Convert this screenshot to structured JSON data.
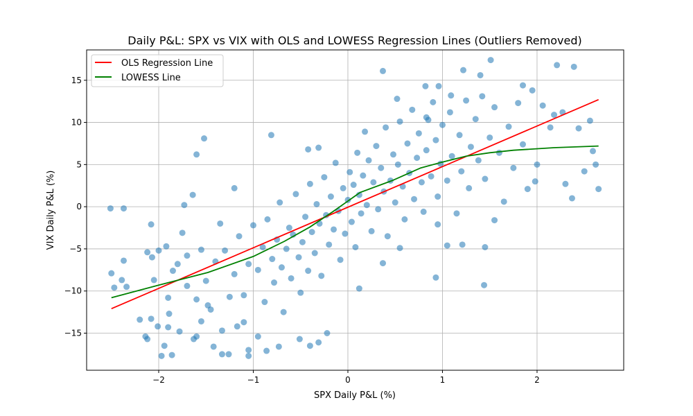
{
  "chart_data": {
    "type": "scatter",
    "title": "Daily P&L: SPX vs VIX with OLS and LOWESS Regression Lines (Outliers Removed)",
    "xlabel": "SPX Daily P&L (%)",
    "ylabel": "VIX Daily P&L (%)",
    "xlim": [
      -2.762,
      2.916
    ],
    "ylim": [
      -19.4,
      18.6
    ],
    "x_ticks": [
      -2,
      -1,
      0,
      1,
      2
    ],
    "x_tick_labels": [
      "−2",
      "−1",
      "0",
      "1",
      "2"
    ],
    "y_ticks": [
      -15,
      -10,
      -5,
      0,
      5,
      10,
      15
    ],
    "y_tick_labels": [
      "−15",
      "−10",
      "−5",
      "0",
      "5",
      "10",
      "15"
    ],
    "grid": true,
    "legend_position": "upper-left",
    "colors": {
      "points": "#1f77b4",
      "ols": "#ff0000",
      "lowess": "#008000"
    },
    "legend": [
      {
        "label": "OLS Regression Line",
        "color": "#ff0000"
      },
      {
        "label": "LOWESS Line",
        "color": "#008000"
      }
    ],
    "series": [
      {
        "kind": "scatter",
        "points": [
          [
            -2.51,
            -0.2
          ],
          [
            -2.37,
            -0.2
          ],
          [
            -2.5,
            -7.9
          ],
          [
            -2.47,
            -9.6
          ],
          [
            -2.37,
            -6.4
          ],
          [
            -2.34,
            -9.5
          ],
          [
            -2.39,
            -8.7
          ],
          [
            -2.2,
            -13.4
          ],
          [
            -2.08,
            -2.1
          ],
          [
            -2.14,
            -15.4
          ],
          [
            -2.12,
            -15.7
          ],
          [
            -2.08,
            -13.3
          ],
          [
            -2.05,
            -8.7
          ],
          [
            -2.12,
            -5.4
          ],
          [
            -2.07,
            -6.0
          ],
          [
            -2.01,
            -14.2
          ],
          [
            -1.97,
            -17.7
          ],
          [
            -1.94,
            -16.5
          ],
          [
            -1.92,
            -4.7
          ],
          [
            -1.9,
            -14.3
          ],
          [
            -1.89,
            -12.7
          ],
          [
            -1.86,
            -17.6
          ],
          [
            -1.85,
            -7.6
          ],
          [
            -1.78,
            -14.8
          ],
          [
            -1.75,
            -3.1
          ],
          [
            -1.73,
            0.2
          ],
          [
            -1.64,
            1.4
          ],
          [
            -1.52,
            8.1
          ],
          [
            -1.6,
            6.2
          ],
          [
            -1.6,
            -15.4
          ],
          [
            -1.63,
            -15.7
          ],
          [
            -1.55,
            -13.6
          ],
          [
            -1.48,
            -11.7
          ],
          [
            -1.42,
            -16.6
          ],
          [
            -1.33,
            -14.7
          ],
          [
            -1.33,
            -17.5
          ],
          [
            -1.26,
            -17.5
          ],
          [
            -1.17,
            -14.2
          ],
          [
            -1.05,
            -17.0
          ],
          [
            -1.05,
            -17.7
          ],
          [
            -0.95,
            -15.4
          ],
          [
            -0.86,
            -17.1
          ],
          [
            -0.73,
            -16.6
          ],
          [
            -0.81,
            8.5
          ],
          [
            -0.42,
            6.8
          ],
          [
            -0.31,
            7.0
          ],
          [
            -0.51,
            -15.7
          ],
          [
            -0.31,
            -16.1
          ],
          [
            -0.4,
            -16.5
          ],
          [
            -0.22,
            -15.0
          ],
          [
            0.12,
            -9.7
          ],
          [
            0.37,
            16.1
          ],
          [
            0.93,
            -8.4
          ],
          [
            1.44,
            -9.3
          ],
          [
            1.22,
            16.2
          ],
          [
            1.51,
            17.4
          ],
          [
            1.4,
            15.6
          ],
          [
            2.21,
            16.8
          ],
          [
            2.39,
            16.6
          ],
          [
            2.44,
            9.3
          ],
          [
            2.56,
            10.2
          ],
          [
            2.65,
            2.1
          ],
          [
            2.62,
            5.0
          ],
          [
            2.59,
            6.6
          ],
          [
            2.37,
            1.0
          ],
          [
            2.3,
            2.7
          ],
          [
            2.0,
            5.0
          ],
          [
            1.98,
            3.0
          ],
          [
            1.9,
            2.1
          ],
          [
            1.85,
            14.4
          ],
          [
            1.95,
            13.8
          ],
          [
            1.55,
            -1.6
          ],
          [
            1.45,
            -4.8
          ],
          [
            1.05,
            -4.6
          ],
          [
            1.21,
            -4.5
          ],
          [
            0.95,
            -2.1
          ],
          [
            0.37,
            -6.7
          ],
          [
            0.55,
            -4.9
          ],
          [
            1.09,
            13.2
          ],
          [
            0.96,
            14.3
          ],
          [
            0.82,
            14.3
          ],
          [
            0.52,
            12.8
          ],
          [
            0.83,
            10.6
          ],
          [
            2.14,
            9.4
          ],
          [
            2.06,
            12.0
          ],
          [
            2.18,
            10.9
          ],
          [
            2.27,
            11.2
          ],
          [
            2.5,
            4.2
          ],
          [
            -1.4,
            -6.5
          ],
          [
            -1.3,
            -5.2
          ],
          [
            -1.2,
            -8.0
          ],
          [
            -1.15,
            -3.5
          ],
          [
            -1.1,
            -10.5
          ],
          [
            -1.05,
            -6.8
          ],
          [
            -1.0,
            -2.2
          ],
          [
            -0.95,
            -7.5
          ],
          [
            -0.9,
            -4.8
          ],
          [
            -0.88,
            -11.3
          ],
          [
            -0.85,
            -1.5
          ],
          [
            -0.8,
            -6.2
          ],
          [
            -0.78,
            -9.0
          ],
          [
            -0.75,
            -3.9
          ],
          [
            -0.72,
            0.5
          ],
          [
            -0.7,
            -7.2
          ],
          [
            -0.68,
            -12.5
          ],
          [
            -0.65,
            -5.0
          ],
          [
            -0.62,
            -2.5
          ],
          [
            -0.6,
            -8.5
          ],
          [
            -0.58,
            -3.3
          ],
          [
            -0.55,
            1.5
          ],
          [
            -0.52,
            -6.0
          ],
          [
            -0.5,
            -10.2
          ],
          [
            -0.48,
            -4.2
          ],
          [
            -0.45,
            -1.2
          ],
          [
            -0.42,
            -7.6
          ],
          [
            -0.4,
            2.7
          ],
          [
            -0.38,
            -3.0
          ],
          [
            -0.35,
            -5.5
          ],
          [
            -0.33,
            0.3
          ],
          [
            -0.3,
            -2.0
          ],
          [
            -0.28,
            -8.2
          ],
          [
            -0.25,
            3.5
          ],
          [
            -0.23,
            -1.0
          ],
          [
            -0.2,
            -4.5
          ],
          [
            -0.18,
            1.2
          ],
          [
            -0.15,
            -2.7
          ],
          [
            -0.13,
            5.2
          ],
          [
            -0.1,
            -0.5
          ],
          [
            -0.08,
            -6.3
          ],
          [
            -0.05,
            2.2
          ],
          [
            -0.03,
            -3.2
          ],
          [
            0.0,
            0.8
          ],
          [
            0.02,
            4.1
          ],
          [
            0.04,
            -1.8
          ],
          [
            0.06,
            2.6
          ],
          [
            0.08,
            -4.8
          ],
          [
            0.1,
            6.4
          ],
          [
            0.12,
            1.4
          ],
          [
            0.14,
            -0.8
          ],
          [
            0.16,
            3.7
          ],
          [
            0.18,
            8.9
          ],
          [
            0.2,
            0.2
          ],
          [
            0.22,
            5.5
          ],
          [
            0.25,
            -2.9
          ],
          [
            0.27,
            2.9
          ],
          [
            0.3,
            7.2
          ],
          [
            0.32,
            -0.3
          ],
          [
            0.35,
            4.6
          ],
          [
            0.38,
            1.8
          ],
          [
            0.4,
            9.4
          ],
          [
            0.42,
            -3.5
          ],
          [
            0.45,
            3.1
          ],
          [
            0.48,
            6.2
          ],
          [
            0.5,
            0.5
          ],
          [
            0.53,
            5.0
          ],
          [
            0.55,
            10.1
          ],
          [
            0.58,
            2.4
          ],
          [
            0.6,
            -1.5
          ],
          [
            0.63,
            7.5
          ],
          [
            0.65,
            4.0
          ],
          [
            0.68,
            11.5
          ],
          [
            0.7,
            0.9
          ],
          [
            0.73,
            5.8
          ],
          [
            0.75,
            8.7
          ],
          [
            0.78,
            2.9
          ],
          [
            0.8,
            -0.6
          ],
          [
            0.83,
            6.7
          ],
          [
            0.85,
            10.3
          ],
          [
            0.88,
            3.6
          ],
          [
            0.9,
            12.4
          ],
          [
            0.93,
            7.9
          ],
          [
            0.95,
            1.2
          ],
          [
            0.98,
            5.1
          ],
          [
            1.0,
            9.7
          ],
          [
            1.05,
            3.1
          ],
          [
            1.08,
            11.2
          ],
          [
            1.1,
            6.0
          ],
          [
            1.15,
            -0.8
          ],
          [
            1.18,
            8.5
          ],
          [
            1.2,
            4.2
          ],
          [
            1.25,
            12.6
          ],
          [
            1.28,
            2.2
          ],
          [
            1.3,
            7.1
          ],
          [
            1.35,
            10.4
          ],
          [
            1.38,
            5.5
          ],
          [
            1.42,
            13.1
          ],
          [
            1.45,
            3.3
          ],
          [
            1.5,
            8.2
          ],
          [
            1.55,
            11.8
          ],
          [
            1.6,
            6.4
          ],
          [
            1.65,
            0.6
          ],
          [
            1.7,
            9.5
          ],
          [
            1.75,
            4.6
          ],
          [
            1.8,
            12.3
          ],
          [
            1.85,
            7.4
          ],
          [
            -1.8,
            -6.8
          ],
          [
            -1.7,
            -9.4
          ],
          [
            -1.6,
            -11.0
          ],
          [
            -1.55,
            -5.1
          ],
          [
            -1.5,
            -8.8
          ],
          [
            -1.45,
            -12.2
          ],
          [
            -1.35,
            -2.0
          ],
          [
            -1.25,
            -10.7
          ],
          [
            -1.2,
            2.2
          ],
          [
            -1.1,
            -13.7
          ],
          [
            -1.7,
            -5.8
          ],
          [
            -1.9,
            -10.8
          ],
          [
            -2.0,
            -5.2
          ]
        ]
      },
      {
        "kind": "line",
        "name": "OLS Regression Line",
        "color": "#ff0000",
        "points": [
          [
            -2.5,
            -12.1
          ],
          [
            2.65,
            12.7
          ]
        ]
      },
      {
        "kind": "line",
        "name": "LOWESS Line",
        "color": "#008000",
        "points": [
          [
            -2.5,
            -10.8
          ],
          [
            -2.0,
            -9.3
          ],
          [
            -1.48,
            -7.8
          ],
          [
            -1.0,
            -5.9
          ],
          [
            -0.67,
            -4.1
          ],
          [
            -0.4,
            -2.4
          ],
          [
            -0.16,
            -0.6
          ],
          [
            0.13,
            1.7
          ],
          [
            0.47,
            3.1
          ],
          [
            0.77,
            4.6
          ],
          [
            1.0,
            5.3
          ],
          [
            1.25,
            6.0
          ],
          [
            1.5,
            6.4
          ],
          [
            1.75,
            6.7
          ],
          [
            2.18,
            7.0
          ],
          [
            2.65,
            7.2
          ]
        ]
      }
    ]
  }
}
